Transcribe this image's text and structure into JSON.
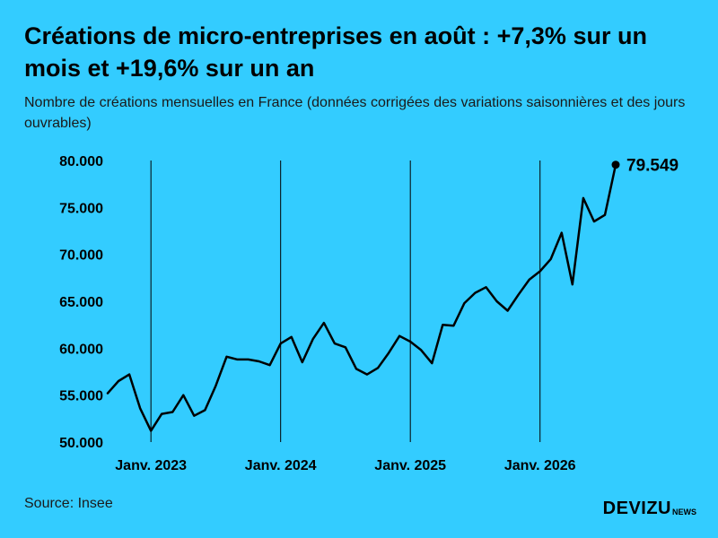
{
  "header": {
    "title": "Créations de micro-entreprises en août : +7,3% sur un mois et +19,6% sur un an",
    "subtitle": "Nombre de créations mensuelles en France (données corrigées des variations saisonnières et des jours ouvrables)"
  },
  "footer": {
    "source": "Source: Insee",
    "brand": "DEVIZU",
    "brand_suffix": "NEWS"
  },
  "colors": {
    "background": "#33CCFF",
    "line": "#000000"
  },
  "chart_data": {
    "type": "line",
    "title": "Créations de micro-entreprises en août : +7,3% sur un mois et +19,6% sur un an",
    "subtitle": "Nombre de créations mensuelles en France (données corrigées des variations saisonnières et des jours ouvrables)",
    "xlabel": "",
    "ylabel": "",
    "ylim": [
      50000,
      80000
    ],
    "yticks": [
      50000,
      55000,
      60000,
      65000,
      70000,
      75000,
      80000
    ],
    "ytick_labels": [
      "50.000",
      "55.000",
      "60.000",
      "65.000",
      "70.000",
      "75.000",
      "80.000"
    ],
    "xticks": [
      "2023-01",
      "2024-01",
      "2025-01",
      "2026-01"
    ],
    "xtick_labels": [
      "Janv. 2023",
      "Janv. 2024",
      "Janv. 2025",
      "Janv. 2026"
    ],
    "grid": "vertical lines at January ticks",
    "end_label": "79.549",
    "series": [
      {
        "x": [
          "2022-09",
          "2022-10",
          "2022-11",
          "2022-12",
          "2023-01",
          "2023-02",
          "2023-03",
          "2023-04",
          "2023-05",
          "2023-06",
          "2023-07",
          "2023-08",
          "2023-09",
          "2023-10",
          "2023-11",
          "2023-12",
          "2024-01",
          "2024-02",
          "2024-03",
          "2024-04",
          "2024-05",
          "2024-06",
          "2024-07",
          "2024-08",
          "2024-09",
          "2024-10",
          "2024-11",
          "2024-12",
          "2025-01",
          "2025-02",
          "2025-03",
          "2025-04",
          "2025-05",
          "2025-06",
          "2025-07",
          "2025-08",
          "2025-09",
          "2025-10",
          "2025-11",
          "2025-12",
          "2026-01",
          "2026-02",
          "2026-03",
          "2026-04",
          "2026-05",
          "2026-06",
          "2026-07",
          "2026-08"
        ],
        "values": [
          55200,
          56500,
          57200,
          53600,
          51200,
          53000,
          53200,
          55000,
          52800,
          53400,
          56000,
          59100,
          58800,
          58800,
          58600,
          58200,
          60500,
          61200,
          58500,
          61000,
          62700,
          60500,
          60100,
          57800,
          57200,
          57900,
          59500,
          61300,
          60700,
          59800,
          58400,
          62500,
          62400,
          64800,
          65900,
          66500,
          65000,
          64000,
          65700,
          67300,
          68200,
          69500,
          72300,
          66800,
          76000,
          73500,
          74200,
          79549
        ]
      }
    ]
  }
}
